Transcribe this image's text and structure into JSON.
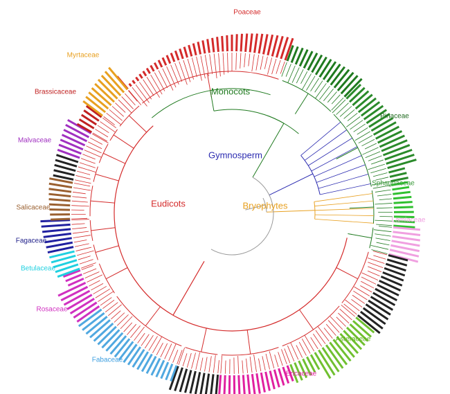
{
  "labels": [
    {
      "text": "Poaceae",
      "color": "#d42a2a"
    },
    {
      "text": "Myrtaceae",
      "color": "#e8a020"
    },
    {
      "text": "Monocots",
      "color": "#1f7a1f"
    },
    {
      "text": "Brassicaceae",
      "color": "#c02020"
    },
    {
      "text": "Pinaceae",
      "color": "#1f6a1f"
    },
    {
      "text": "Malvaceae",
      "color": "#a030c0"
    },
    {
      "text": "Gymnosperm",
      "color": "#2a2ab0"
    },
    {
      "text": "Sphagnaceae",
      "color": "#3a9a3a"
    },
    {
      "text": "Eudicots",
      "color": "#d42a2a"
    },
    {
      "text": "Bryophytes",
      "color": "#e8a020"
    },
    {
      "text": "Salicaceae",
      "color": "#9a6030"
    },
    {
      "text": "Lamiaceae",
      "color": "#f0a0e0"
    },
    {
      "text": "Fagaceae",
      "color": "#20208a"
    },
    {
      "text": "Betulaceae",
      "color": "#20d0e0"
    },
    {
      "text": "Rosaceae",
      "color": "#d030c0"
    },
    {
      "text": "Asteraceae",
      "color": "#60b020"
    },
    {
      "text": "Fabaceae",
      "color": "#40a0e0"
    },
    {
      "text": "Ericaceae",
      "color": "#e020a0"
    }
  ]
}
